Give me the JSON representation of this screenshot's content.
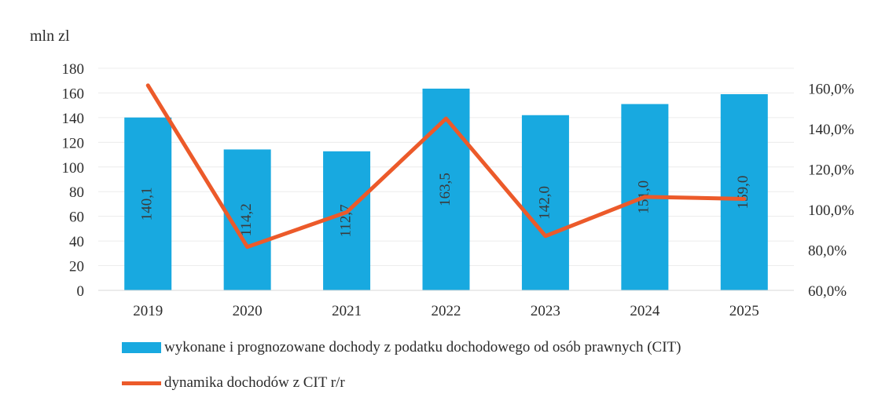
{
  "chart_data": {
    "type": "bar",
    "unit_label": "mln zl",
    "categories": [
      "2019",
      "2020",
      "2021",
      "2022",
      "2023",
      "2024",
      "2025"
    ],
    "series": [
      {
        "name": "wykonane i prognozowane dochody z podatku dochodowego od osób prawnych (CIT)",
        "type": "bar",
        "axis": "left",
        "values": [
          140.1,
          114.2,
          112.7,
          163.5,
          142.0,
          151.0,
          159.0
        ],
        "labels": [
          "140,1",
          "114,2",
          "112,7",
          "163,5",
          "142,0",
          "151,0",
          "159,0"
        ],
        "color": "#18a9e0"
      },
      {
        "name": "dynamika dochodów z CIT r/r",
        "type": "line",
        "axis": "right",
        "values": [
          161.5,
          81.5,
          98.7,
          145.1,
          86.9,
          106.3,
          105.3
        ],
        "color": "#ec5a2a"
      }
    ],
    "y_left": {
      "min": 0,
      "max": 180,
      "ticks": [
        "0",
        "20",
        "40",
        "60",
        "80",
        "100",
        "120",
        "140",
        "160",
        "180"
      ]
    },
    "y_right": {
      "min": 60,
      "max": 170,
      "ticks": [
        "60,0%",
        "80,0%",
        "100,0%",
        "120,0%",
        "140,0%",
        "160,0%"
      ]
    },
    "grid": true,
    "legend_position": "bottom"
  }
}
